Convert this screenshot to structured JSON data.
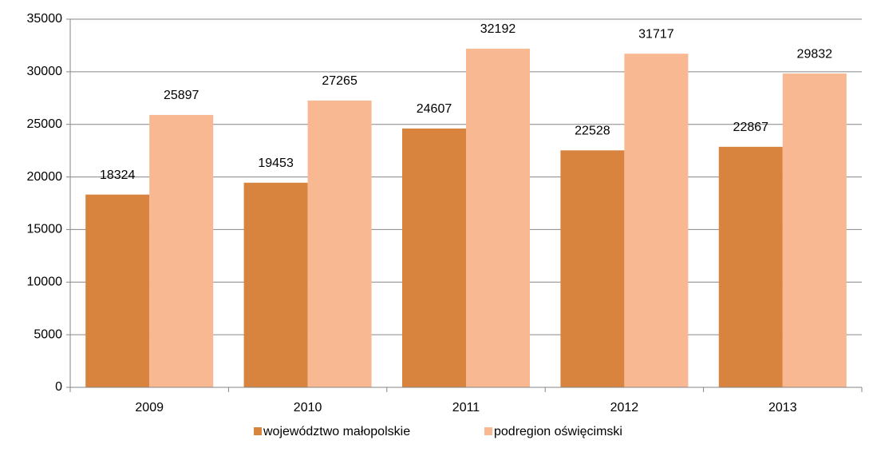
{
  "chart_data": {
    "type": "bar",
    "categories": [
      "2009",
      "2010",
      "2011",
      "2012",
      "2013"
    ],
    "series": [
      {
        "name": "województwo małopolskie",
        "color": "#d9843e",
        "values": [
          18324,
          19453,
          24607,
          22528,
          22867
        ]
      },
      {
        "name": "podregion oświęcimski",
        "color": "#f8b892",
        "values": [
          25897,
          27265,
          32192,
          31717,
          29832
        ]
      }
    ],
    "ylim": [
      0,
      35000
    ],
    "yticks": [
      0,
      5000,
      10000,
      15000,
      20000,
      25000,
      30000,
      35000
    ],
    "grid": true,
    "legend": "bottom"
  }
}
